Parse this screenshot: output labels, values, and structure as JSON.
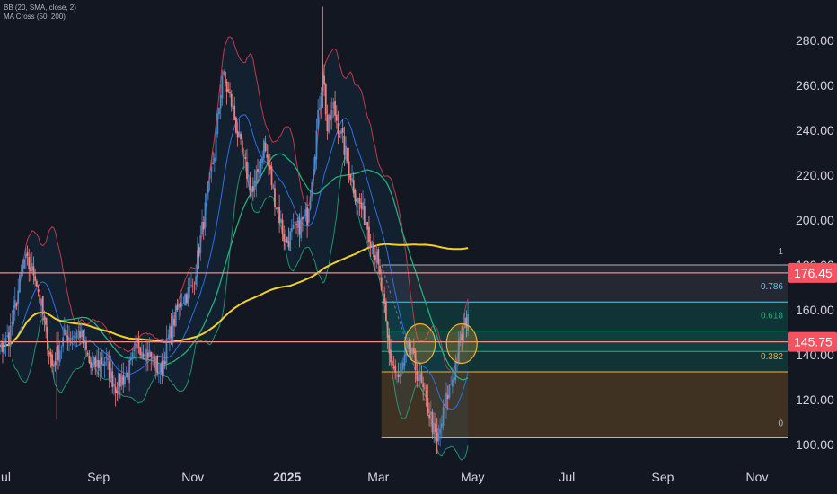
{
  "legend": {
    "bb": "BB (20, SMA, close, 2)",
    "ma": "MA Cross (50, 200)"
  },
  "colors": {
    "background": "#131722",
    "up": "#4d87c8",
    "down": "#f08080",
    "bb_band": "#c0394a",
    "bb_basis": "#2e6fe0",
    "ma50": "#22b07d",
    "ma200": "#f2d02a",
    "hline": "#f28c8c",
    "price_tag": "#f7525f"
  },
  "chart_data": {
    "type": "candlestick",
    "y_ticks": [
      100,
      120,
      140,
      160,
      180,
      200,
      220,
      240,
      260,
      280
    ],
    "y_tick_labels": [
      "100.00",
      "120.00",
      "140.00",
      "160.00",
      "180.00",
      "200.00",
      "220.00",
      "240.00",
      "260.00",
      "280.00"
    ],
    "ylim": [
      93,
      296
    ],
    "x_axis_labels": [
      "Jul",
      "Sep",
      "Nov",
      "2025",
      "Mar",
      "May",
      "Jul",
      "Sep",
      "Nov"
    ],
    "x_axis_label_dates": [
      "2024-07-01",
      "2024-09-01",
      "2024-11-01",
      "2025-01-01",
      "2025-03-01",
      "2025-05-01",
      "2025-07-01",
      "2025-09-01",
      "2025-11-01"
    ],
    "date_range": [
      "2024-06-18",
      "2025-12-01"
    ],
    "price_path": [
      [
        "2024-06-18",
        148
      ],
      [
        "2024-06-28",
        140
      ],
      [
        "2024-07-05",
        148
      ],
      [
        "2024-07-15",
        182
      ],
      [
        "2024-07-22",
        176
      ],
      [
        "2024-08-02",
        135
      ],
      [
        "2024-08-10",
        148
      ],
      [
        "2024-08-20",
        150
      ],
      [
        "2024-08-27",
        134
      ],
      [
        "2024-09-05",
        138
      ],
      [
        "2024-09-12",
        126
      ],
      [
        "2024-09-20",
        132
      ],
      [
        "2024-09-27",
        145
      ],
      [
        "2024-10-04",
        140
      ],
      [
        "2024-10-11",
        132
      ],
      [
        "2024-10-18",
        152
      ],
      [
        "2024-10-25",
        165
      ],
      [
        "2024-11-01",
        170
      ],
      [
        "2024-11-08",
        200
      ],
      [
        "2024-11-15",
        230
      ],
      [
        "2024-11-20",
        265
      ],
      [
        "2024-11-26",
        252
      ],
      [
        "2024-12-03",
        228
      ],
      [
        "2024-12-10",
        212
      ],
      [
        "2024-12-17",
        234
      ],
      [
        "2024-12-24",
        210
      ],
      [
        "2024-12-31",
        190
      ],
      [
        "2025-01-07",
        196
      ],
      [
        "2025-01-14",
        202
      ],
      [
        "2025-01-21",
        245
      ],
      [
        "2025-01-24",
        268
      ],
      [
        "2025-01-27",
        240
      ],
      [
        "2025-01-31",
        250
      ],
      [
        "2025-02-07",
        232
      ],
      [
        "2025-02-14",
        212
      ],
      [
        "2025-02-21",
        200
      ],
      [
        "2025-02-28",
        182
      ],
      [
        "2025-03-04",
        165
      ],
      [
        "2025-03-08",
        140
      ],
      [
        "2025-03-14",
        128
      ],
      [
        "2025-03-21",
        143
      ],
      [
        "2025-03-28",
        128
      ],
      [
        "2025-04-04",
        112
      ],
      [
        "2025-04-08",
        100
      ],
      [
        "2025-04-14",
        120
      ],
      [
        "2025-04-18",
        130
      ],
      [
        "2025-04-24",
        148
      ],
      [
        "2025-04-28",
        158
      ]
    ],
    "horizontal_lines": [
      176.45,
      145.75
    ],
    "price_tags": [
      "176.45",
      "145.75"
    ],
    "fibonacci": {
      "start_date": "2025-03-03",
      "end_date": "2025-12-01",
      "low": 103,
      "high": 180,
      "levels": [
        {
          "ratio": 1,
          "label": "1",
          "color": "#b2b5be"
        },
        {
          "ratio": 0.786,
          "label": "0.786",
          "color": "#5fc9e8"
        },
        {
          "ratio": 0.618,
          "label": "0.618",
          "color": "#22b07d"
        },
        {
          "ratio": 0.5,
          "label": "",
          "color": "#22b07d"
        },
        {
          "ratio": 0.382,
          "label": "0.382",
          "color": "#f0b33a"
        },
        {
          "ratio": 0,
          "label": "0",
          "color": "#b2b5be"
        }
      ]
    },
    "circles": [
      {
        "date": "2025-03-28",
        "price": 145
      },
      {
        "date": "2025-04-24",
        "price": 145
      }
    ],
    "series": [
      {
        "name": "BB (20, SMA, close, 2)"
      },
      {
        "name": "MA Cross (50, 200)"
      }
    ],
    "grid": false
  }
}
